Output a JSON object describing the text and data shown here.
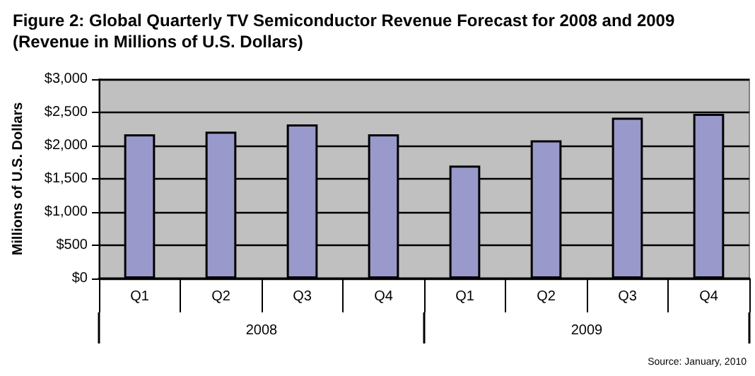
{
  "chart_data": {
    "type": "bar",
    "title": "Figure 2: Global Quarterly TV Semiconductor Revenue Forecast for 2008 and 2009\n(Revenue in Millions of U.S. Dollars)",
    "ylabel": "Millions of U.S. Dollars",
    "categories": [
      "Q1",
      "Q2",
      "Q3",
      "Q4",
      "Q1",
      "Q2",
      "Q3",
      "Q4"
    ],
    "series": [
      {
        "color": "#9999cc",
        "values": [
          2170,
          2210,
          2320,
          2170,
          1700,
          2080,
          2420,
          2480
        ]
      }
    ],
    "ylim": [
      0,
      3000
    ],
    "yticks": [
      {
        "value": 0,
        "label": "$0"
      },
      {
        "value": 500,
        "label": "$500"
      },
      {
        "value": 1000,
        "label": "$1,000"
      },
      {
        "value": 1500,
        "label": "$1,500"
      },
      {
        "value": 2000,
        "label": "$2,000"
      },
      {
        "value": 2500,
        "label": "$2,500"
      },
      {
        "value": 3000,
        "label": "$3,000"
      }
    ],
    "grid": "y",
    "annotations": [
      "2008",
      "2009",
      "Source: January, 2010"
    ]
  }
}
